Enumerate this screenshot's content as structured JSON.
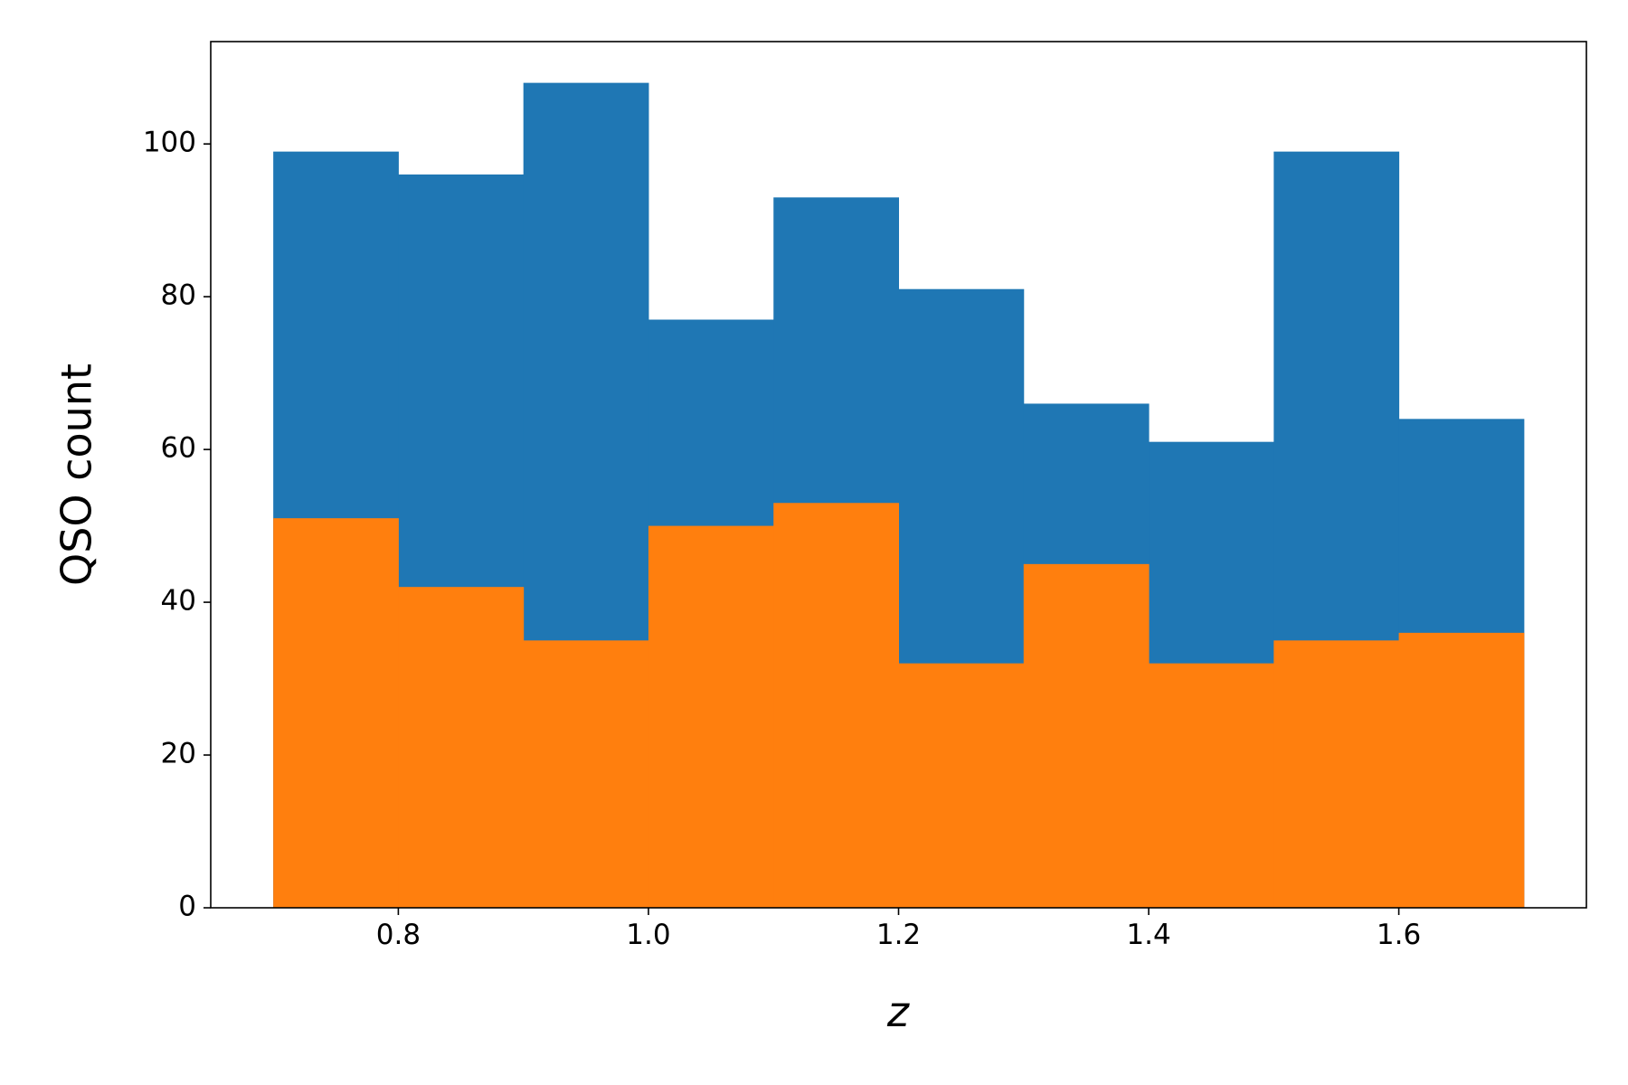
{
  "chart_data": {
    "type": "histogram",
    "xlabel": "z",
    "ylabel": "QSO count",
    "bins": [
      0.7,
      0.8,
      0.9,
      1.0,
      1.1,
      1.2,
      1.3,
      1.4,
      1.5,
      1.6,
      1.7
    ],
    "series": [
      {
        "color": "#1f77b4",
        "values": [
          99,
          96,
          108,
          77,
          93,
          81,
          66,
          61,
          99,
          64
        ]
      },
      {
        "color": "#ff7f0e",
        "values": [
          51,
          42,
          35,
          50,
          53,
          32,
          45,
          32,
          35,
          36
        ]
      }
    ],
    "xlim": [
      0.65,
      1.75
    ],
    "ylim": [
      0,
      113.4
    ],
    "xticks": [
      0.8,
      {
        "value": 1,
        "label": "1.0"
      },
      1.2,
      1.4,
      1.6
    ],
    "yticks": [
      0,
      20,
      40,
      60,
      80,
      100
    ],
    "grid": false
  }
}
